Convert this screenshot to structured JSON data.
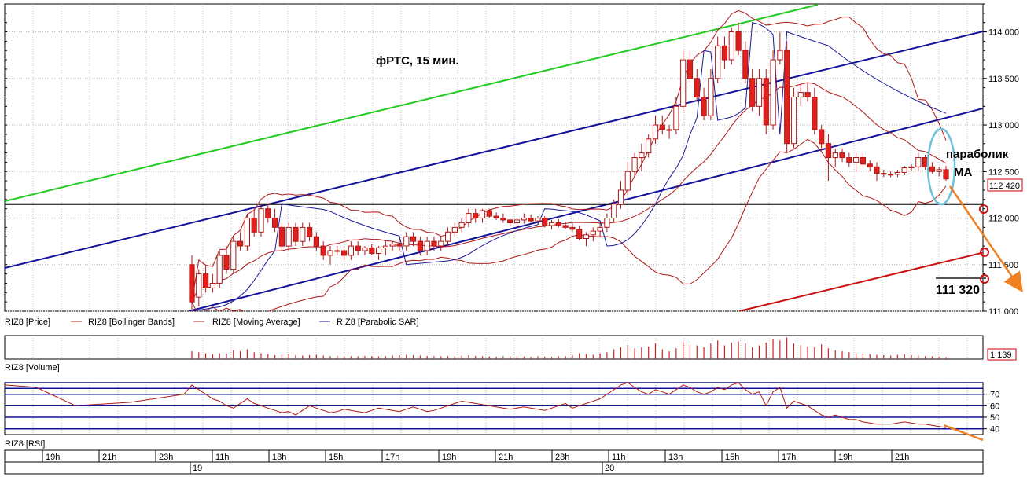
{
  "chart_data": [
    {
      "type": "candlestick",
      "title": "фРТС, 15 мин.",
      "instrument": "RIZ8",
      "ylim": [
        111000,
        114300
      ],
      "yticks": [
        111000,
        111500,
        112000,
        112500,
        113000,
        113500,
        114000
      ],
      "ytick_labels": [
        "111 000",
        "111 500",
        "112 000",
        "112 500",
        "113 000",
        "113 500",
        "114 000"
      ],
      "last_price_label": "112 420",
      "level_label": "111 320",
      "horizontal_level": 112150,
      "annotations": [
        "параболик",
        "МА"
      ],
      "legend": [
        "RIZ8 [Price]",
        "RIZ8 [Bollinger Bands]",
        "RIZ8 [Moving Average]",
        "RIZ8 [Parabolic SAR]"
      ],
      "colors": {
        "up_candle": "#ffffff",
        "down_candle": "#e0201c",
        "bollinger": "#b01818",
        "moving_average": "#b01818",
        "parabolic_sar": "#1a1a9a",
        "channel_blue": "#12129a",
        "channel_green": "#22cc22",
        "channel_red": "#cc1010",
        "forecast_arrow": "#f08020",
        "annotation_ellipse": "#70c0dc"
      },
      "candles": [
        [
          111500,
          111600,
          111000,
          111100
        ],
        [
          111150,
          111450,
          111050,
          111400
        ],
        [
          111400,
          111500,
          111200,
          111250
        ],
        [
          111250,
          111400,
          111200,
          111300
        ],
        [
          111300,
          111650,
          111250,
          111600
        ],
        [
          111600,
          111700,
          111400,
          111450
        ],
        [
          111450,
          111800,
          111400,
          111750
        ],
        [
          111750,
          111850,
          111650,
          111700
        ],
        [
          111700,
          112050,
          111650,
          112000
        ],
        [
          112000,
          112100,
          111800,
          111850
        ],
        [
          111850,
          112150,
          111800,
          112100
        ],
        [
          112100,
          112150,
          111950,
          112000
        ],
        [
          112000,
          112100,
          111850,
          111900
        ],
        [
          111900,
          111950,
          111650,
          111700
        ],
        [
          111700,
          111950,
          111650,
          111900
        ],
        [
          111900,
          111950,
          111700,
          111750
        ],
        [
          111750,
          111950,
          111700,
          111900
        ],
        [
          111900,
          111950,
          111750,
          111800
        ],
        [
          111800,
          111850,
          111650,
          111700
        ],
        [
          111700,
          111750,
          111550,
          111600
        ],
        [
          111600,
          111700,
          111500,
          111650
        ],
        [
          111650,
          111700,
          111600,
          111650
        ],
        [
          111650,
          111700,
          111550,
          111600
        ],
        [
          111600,
          111750,
          111550,
          111700
        ],
        [
          111700,
          111750,
          111600,
          111650
        ],
        [
          111650,
          111700,
          111600,
          111680
        ],
        [
          111680,
          111720,
          111600,
          111620
        ],
        [
          111620,
          111700,
          111550,
          111680
        ],
        [
          111680,
          111750,
          111600,
          111700
        ],
        [
          111700,
          111750,
          111650,
          111720
        ],
        [
          111720,
          111780,
          111650,
          111700
        ],
        [
          111700,
          111850,
          111650,
          111800
        ],
        [
          111800,
          111850,
          111700,
          111750
        ],
        [
          111750,
          111800,
          111600,
          111650
        ],
        [
          111650,
          111800,
          111600,
          111750
        ],
        [
          111750,
          111800,
          111650,
          111700
        ],
        [
          111700,
          111800,
          111650,
          111750
        ],
        [
          111750,
          111900,
          111700,
          111850
        ],
        [
          111850,
          111950,
          111800,
          111900
        ],
        [
          111900,
          112000,
          111850,
          111950
        ],
        [
          111950,
          112100,
          111900,
          112050
        ],
        [
          112050,
          112100,
          111950,
          112000
        ],
        [
          112000,
          112100,
          111950,
          112080
        ],
        [
          112080,
          112100,
          112000,
          112020
        ],
        [
          112020,
          112060,
          111980,
          112000
        ],
        [
          112000,
          112050,
          111950,
          111980
        ],
        [
          111980,
          112000,
          111920,
          111950
        ],
        [
          111950,
          112000,
          111900,
          111980
        ],
        [
          111980,
          112050,
          111940,
          112000
        ],
        [
          112000,
          112040,
          111950,
          111970
        ],
        [
          111970,
          112020,
          111940,
          112000
        ],
        [
          112000,
          112020,
          111900,
          111920
        ],
        [
          111920,
          111980,
          111880,
          111950
        ],
        [
          111950,
          111990,
          111900,
          111920
        ],
        [
          111920,
          111960,
          111880,
          111900
        ],
        [
          111900,
          111950,
          111850,
          111880
        ],
        [
          111880,
          111920,
          111760,
          111780
        ],
        [
          111780,
          111850,
          111700,
          111820
        ],
        [
          111820,
          111900,
          111750,
          111860
        ],
        [
          111860,
          111950,
          111800,
          111900
        ],
        [
          111900,
          112050,
          111850,
          112000
        ],
        [
          112000,
          112200,
          111950,
          112150
        ],
        [
          112150,
          112400,
          112100,
          112300
        ],
        [
          112300,
          112600,
          112250,
          112500
        ],
        [
          112500,
          112700,
          112450,
          112650
        ],
        [
          112650,
          112800,
          112500,
          112700
        ],
        [
          112700,
          112900,
          112650,
          112850
        ],
        [
          112850,
          113100,
          112800,
          113000
        ],
        [
          113000,
          113100,
          112900,
          112950
        ],
        [
          112950,
          113000,
          112850,
          112950
        ],
        [
          112950,
          113300,
          112900,
          113200
        ],
        [
          113200,
          113800,
          113150,
          113700
        ],
        [
          113700,
          113800,
          113450,
          113500
        ],
        [
          113500,
          113600,
          113250,
          113300
        ],
        [
          113300,
          113400,
          113050,
          113100
        ],
        [
          113100,
          113600,
          113050,
          113500
        ],
        [
          113500,
          113950,
          113450,
          113850
        ],
        [
          113850,
          113950,
          113600,
          113700
        ],
        [
          113700,
          114050,
          113650,
          114000
        ],
        [
          114000,
          114100,
          113750,
          113800
        ],
        [
          113800,
          113900,
          113450,
          113500
        ],
        [
          113500,
          113600,
          113150,
          113200
        ],
        [
          113200,
          113600,
          113100,
          113500
        ],
        [
          113500,
          113600,
          112900,
          113000
        ],
        [
          113000,
          113800,
          112950,
          113700
        ],
        [
          113700,
          114000,
          113650,
          113800
        ],
        [
          113800,
          113900,
          112700,
          112800
        ],
        [
          112800,
          113400,
          112750,
          113300
        ],
        [
          113300,
          113450,
          113200,
          113350
        ],
        [
          113350,
          113450,
          113250,
          113300
        ],
        [
          113300,
          113400,
          112900,
          112950
        ],
        [
          112950,
          113000,
          112750,
          112800
        ],
        [
          112800,
          112900,
          112400,
          112650
        ],
        [
          112650,
          112750,
          112550,
          112700
        ],
        [
          112700,
          112750,
          112600,
          112650
        ],
        [
          112650,
          112700,
          112550,
          112600
        ],
        [
          112600,
          112700,
          112500,
          112650
        ],
        [
          112650,
          112700,
          112550,
          112580
        ],
        [
          112580,
          112620,
          112500,
          112550
        ],
        [
          112550,
          112600,
          112400,
          112480
        ],
        [
          112480,
          112520,
          112440,
          112470
        ],
        [
          112470,
          112500,
          112440,
          112470
        ],
        [
          112470,
          112520,
          112440,
          112490
        ],
        [
          112490,
          112560,
          112460,
          112540
        ],
        [
          112540,
          112580,
          112500,
          112550
        ],
        [
          112550,
          112700,
          112500,
          112650
        ],
        [
          112650,
          112680,
          112520,
          112550
        ],
        [
          112550,
          112600,
          112480,
          112500
        ],
        [
          112500,
          112550,
          112450,
          112520
        ],
        [
          112520,
          112560,
          112400,
          112420
        ]
      ],
      "volume": {
        "legend": "RIZ8 [Volume]",
        "last_label": "1 139",
        "values": [
          40,
          35,
          30,
          25,
          30,
          28,
          45,
          40,
          50,
          35,
          30,
          25,
          20,
          22,
          25,
          20,
          18,
          20,
          22,
          18,
          15,
          18,
          16,
          15,
          14,
          16,
          15,
          14,
          15,
          18,
          20,
          22,
          20,
          18,
          16,
          15,
          14,
          15,
          16,
          18,
          20,
          16,
          15,
          14,
          13,
          14,
          15,
          14,
          13,
          12,
          14,
          13,
          12,
          14,
          15,
          20,
          30,
          25,
          22,
          30,
          35,
          50,
          60,
          70,
          55,
          60,
          65,
          80,
          50,
          40,
          55,
          90,
          75,
          70,
          60,
          80,
          95,
          70,
          85,
          90,
          80,
          60,
          70,
          85,
          100,
          95,
          110,
          80,
          70,
          65,
          60,
          75,
          55,
          45,
          40,
          35,
          30,
          28,
          25,
          22,
          20,
          18,
          22,
          25,
          20,
          18,
          15,
          14,
          12,
          10
        ],
        "ylim": [
          0,
          120
        ]
      },
      "rsi": {
        "legend": "RIZ8 [RSI]",
        "ylim": [
          35,
          80
        ],
        "levels": [
          70,
          60,
          50,
          40
        ],
        "level_labels": [
          "70",
          "60",
          "50",
          "40"
        ],
        "values": [
          78,
          74,
          70,
          66,
          64,
          60,
          58,
          62,
          66,
          62,
          60,
          58,
          56,
          54,
          55,
          52,
          56,
          60,
          58,
          56,
          54,
          55,
          57,
          56,
          55,
          54,
          56,
          58,
          57,
          56,
          55,
          57,
          59,
          57,
          55,
          56,
          58,
          60,
          62,
          64,
          63,
          62,
          61,
          60,
          59,
          58,
          57,
          58,
          59,
          58,
          57,
          56,
          58,
          60,
          62,
          58,
          60,
          62,
          64,
          66,
          70,
          74,
          78,
          80,
          76,
          72,
          70,
          74,
          72,
          70,
          74,
          78,
          76,
          72,
          70,
          72,
          76,
          74,
          78,
          80,
          74,
          70,
          72,
          60,
          72,
          76,
          58,
          64,
          62,
          60,
          56,
          52,
          50,
          52,
          50,
          48,
          48,
          46,
          45,
          44,
          44,
          44,
          45,
          46,
          45,
          44,
          44,
          43,
          42,
          41
        ]
      },
      "time_axis": {
        "hour_labels": [
          "19h",
          "21h",
          "23h",
          "11h",
          "13h",
          "15h",
          "17h",
          "19h",
          "21h",
          "23h",
          "11h",
          "13h",
          "15h",
          "17h",
          "19h",
          "21h"
        ],
        "day_labels": [
          "19",
          "20"
        ]
      }
    }
  ]
}
